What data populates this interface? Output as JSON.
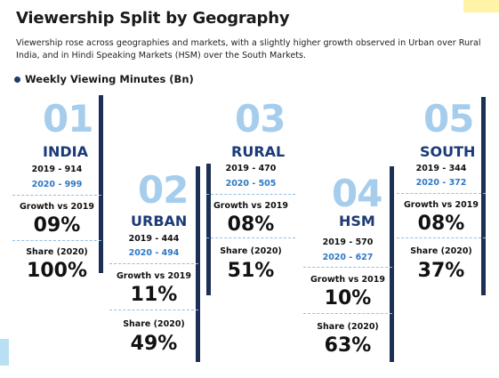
{
  "header": {
    "title": "Viewership Split by Geography",
    "subtitle": "Viewership rose across geographies and markets, with a slightly higher growth observed in Urban over Rural India, and in Hindi Speaking Markets (HSM) over the South Markets.",
    "legend_label": "Weekly Viewing Minutes (Bn)"
  },
  "cards": [
    {
      "num": "01",
      "name": "INDIA",
      "y2019": "2019 - 914",
      "y2020": "2020 - 999",
      "growth_label": "Growth vs 2019",
      "growth": "09%",
      "share_label": "Share (2020)",
      "share": "100%"
    },
    {
      "num": "02",
      "name": "URBAN",
      "y2019": "2019 - 444",
      "y2020": "2020 - 494",
      "growth_label": "Growth vs 2019",
      "growth": "11%",
      "share_label": "Share (2020)",
      "share": "49%"
    },
    {
      "num": "03",
      "name": "RURAL",
      "y2019": "2019 - 470",
      "y2020": "2020 - 505",
      "growth_label": "Growth vs 2019",
      "growth": "08%",
      "share_label": "Share (2020)",
      "share": "51%"
    },
    {
      "num": "04",
      "name": "HSM",
      "y2019": "2019 - 570",
      "y2020": "2020 - 627",
      "growth_label": "Growth vs 2019",
      "growth": "10%",
      "share_label": "Share (2020)",
      "share": "63%"
    },
    {
      "num": "05",
      "name": "SOUTH",
      "y2019": "2019 - 344",
      "y2020": "2020 - 372",
      "growth_label": "Growth vs 2019",
      "growth": "08%",
      "share_label": "Share (2020)",
      "share": "37%"
    }
  ],
  "chart_data": {
    "type": "table",
    "categories": [
      "INDIA",
      "URBAN",
      "RURAL",
      "HSM",
      "SOUTH"
    ],
    "series": [
      {
        "name": "2019",
        "values": [
          914,
          444,
          470,
          570,
          344
        ]
      },
      {
        "name": "2020",
        "values": [
          999,
          494,
          505,
          627,
          372
        ]
      }
    ],
    "growth_vs_2019": [
      "09%",
      "11%",
      "08%",
      "10%",
      "08%"
    ],
    "share_2020": [
      "100%",
      "49%",
      "51%",
      "63%",
      "37%"
    ],
    "colors": {
      "number": "#a6cdec",
      "name": "#1b3a77",
      "year_2020": "#2e78c4",
      "bar": "#1c2f55",
      "divider": "#8fbfe4"
    }
  }
}
